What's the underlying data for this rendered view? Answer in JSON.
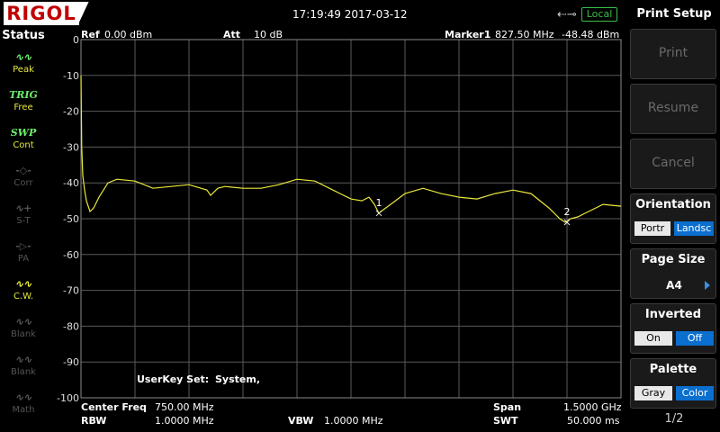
{
  "brand": "RIGOL",
  "datetime": "17:19:49 2017-03-12",
  "local_badge": "Local",
  "status": {
    "title": "Status",
    "items": [
      {
        "icon": "Peak",
        "label": "Peak",
        "state": "on"
      },
      {
        "icon": "TRIG",
        "label": "Free",
        "state": "on"
      },
      {
        "icon": "SWP",
        "label": "Cont",
        "state": "on"
      },
      {
        "icon": "Corr",
        "label": "Corr",
        "state": "off"
      },
      {
        "icon": "S-T",
        "label": "S-T",
        "state": "off"
      },
      {
        "icon": "PA",
        "label": "PA",
        "state": "off"
      },
      {
        "icon": "C.W.",
        "label": "C.W.",
        "state": "on"
      },
      {
        "icon": "Blank",
        "label": "Blank",
        "state": "off"
      },
      {
        "icon": "Blank",
        "label": "Blank",
        "state": "off"
      },
      {
        "icon": "Math",
        "label": "Math",
        "state": "off"
      }
    ]
  },
  "header": {
    "ref_label": "Ref",
    "ref_value": "0.00 dBm",
    "att_label": "Att",
    "att_value": "10 dB",
    "marker_label": "Marker1",
    "marker_freq": "827.50 MHz",
    "marker_amp": "-48.48 dBm"
  },
  "userkey": {
    "label": "UserKey Set:",
    "value": "System,"
  },
  "footer": {
    "center_freq_label": "Center Freq",
    "center_freq_value": "750.00 MHz",
    "rbw_label": "RBW",
    "rbw_value": "1.0000 MHz",
    "vbw_label": "VBW",
    "vbw_value": "1.0000 MHz",
    "span_label": "Span",
    "span_value": "1.5000 GHz",
    "swt_label": "SWT",
    "swt_value": "50.000 ms"
  },
  "chart_data": {
    "type": "line",
    "y_tick_labels": [
      "0",
      "-10",
      "-20",
      "-30",
      "-40",
      "-50",
      "-60",
      "-70",
      "-80",
      "-90",
      "-100"
    ],
    "ylim": [
      -100,
      0
    ],
    "xlim": [
      0,
      1500
    ],
    "grid": true,
    "series": [
      {
        "color": "#e8e83a",
        "x": [
          0,
          2,
          5,
          10,
          15,
          25,
          35,
          50,
          75,
          100,
          150,
          200,
          250,
          300,
          350,
          360,
          380,
          400,
          450,
          500,
          550,
          600,
          650,
          700,
          750,
          780,
          800,
          815,
          827.5,
          840,
          860,
          900,
          950,
          1000,
          1050,
          1100,
          1150,
          1200,
          1250,
          1300,
          1330,
          1345,
          1360,
          1380,
          1400,
          1450,
          1500
        ],
        "values": [
          -10,
          -30,
          -38,
          -42,
          -45,
          -48,
          -47,
          -44,
          -40,
          -39,
          -39.5,
          -41.5,
          -41,
          -40.5,
          -42,
          -43.5,
          -41.5,
          -41,
          -41.5,
          -41.5,
          -40.5,
          -39,
          -39.5,
          -42,
          -44.5,
          -45,
          -44,
          -46,
          -48.5,
          -47.5,
          -46,
          -43,
          -41.5,
          -43,
          -44,
          -44.5,
          -43,
          -42,
          -43,
          -47,
          -50,
          -51,
          -50,
          -49.5,
          -48.5,
          -46,
          -46.5
        ]
      }
    ],
    "markers": [
      {
        "label": "1",
        "x": 827.5,
        "y": -48.48
      },
      {
        "label": "2",
        "x": 1350,
        "y": -51
      }
    ]
  },
  "menu": {
    "title": "Print Setup",
    "print": "Print",
    "resume": "Resume",
    "cancel": "Cancel",
    "orientation": {
      "label": "Orientation",
      "opt1": "Portr",
      "opt2": "Landsc"
    },
    "page_size": {
      "label": "Page Size",
      "value": "A4"
    },
    "inverted": {
      "label": "Inverted",
      "opt1": "On",
      "opt2": "Off"
    },
    "palette": {
      "label": "Palette",
      "opt1": "Gray",
      "opt2": "Color"
    },
    "page_indicator": "1/2"
  }
}
